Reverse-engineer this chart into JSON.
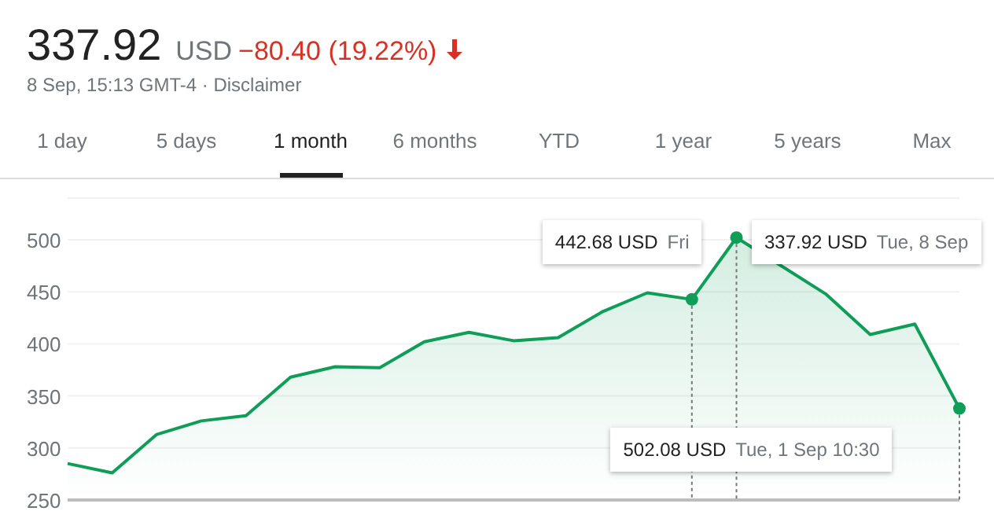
{
  "chart_data": {
    "type": "area",
    "title": "337.92",
    "subtitle": "8 Sep, 15:13 GMT-4 · Disclaimer",
    "annotations": [
      "USD",
      "−80.40 (19.22%)",
      "1 day",
      "5 days",
      "1 month",
      "6 months",
      "YTD",
      "1 year",
      "5 years",
      "Max",
      {
        "text": "442.68 USD  Fri",
        "y": 442.68
      },
      "502.08 USD  Tue, 1 Sep 10:30",
      "337.92 USD  Tue, 8 Sep"
    ],
    "categories": [
      null,
      null,
      null,
      null,
      null,
      null,
      null,
      null,
      null,
      null,
      null,
      null,
      null,
      null,
      null,
      null,
      null,
      null,
      null,
      null,
      null
    ],
    "values": [
      285,
      276,
      313,
      326,
      331,
      368,
      378,
      377,
      402,
      411,
      403,
      406,
      431,
      449,
      442.68,
      502.08,
      null,
      448,
      409,
      419,
      337.92
    ],
    "color": "#0f9d58",
    "ylim": [
      250,
      540
    ],
    "yticks": [
      250,
      300,
      350,
      400,
      450,
      500
    ],
    "grid": "y"
  }
}
